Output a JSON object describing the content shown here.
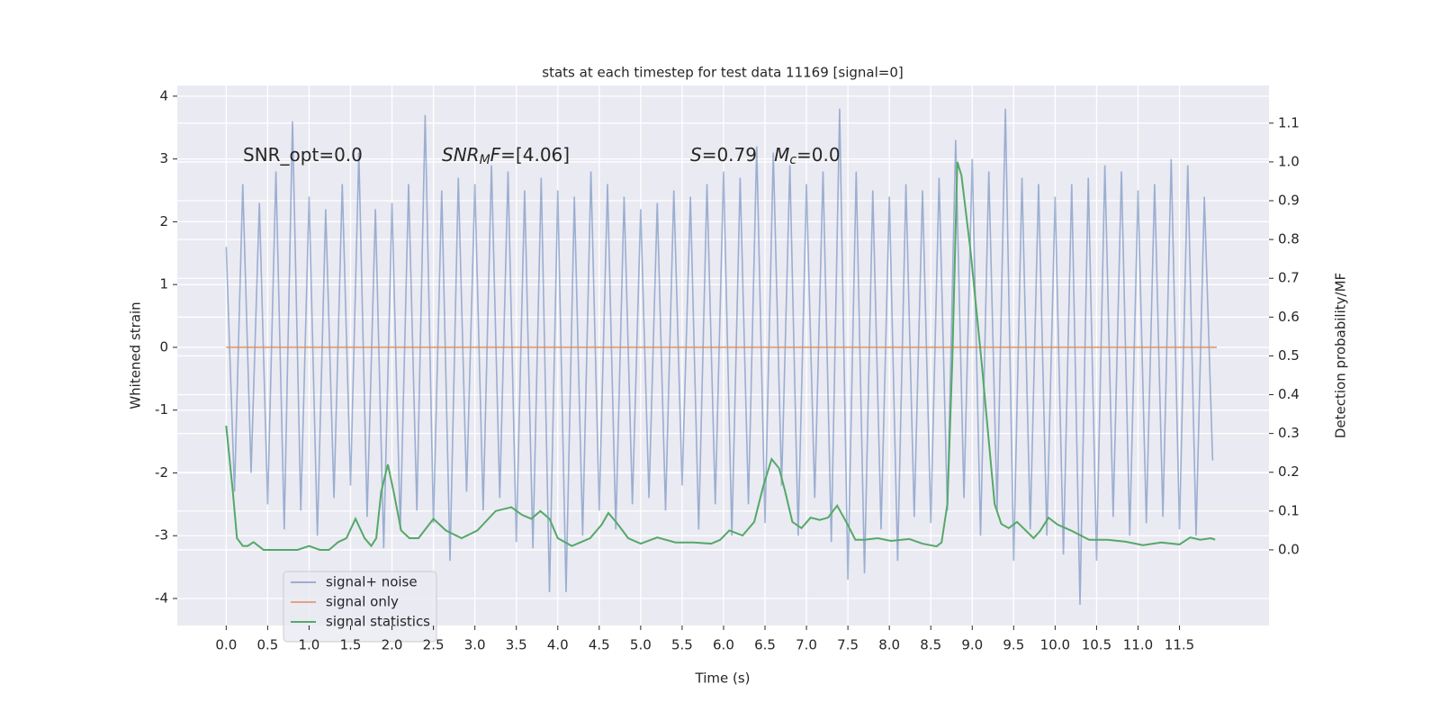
{
  "chart_data": {
    "type": "line",
    "title": "stats at each timestep for test data 11169 [signal=0]",
    "x_label": "Time (s)",
    "y_label": "Whitened strain",
    "y2_label": "Detection probability/MF",
    "xlim": [
      -0.59,
      12.58
    ],
    "ylim": [
      -4.43,
      4.17
    ],
    "y2lim": [
      -0.195,
      1.197
    ],
    "xticks": [
      {
        "value": 0,
        "label": "0.0"
      },
      0.5,
      {
        "value": 1,
        "label": "1.0"
      },
      1.5,
      {
        "value": 2,
        "label": "2.0"
      },
      2.5,
      {
        "value": 3,
        "label": "3.0"
      },
      3.5,
      {
        "value": 4,
        "label": "4.0"
      },
      4.5,
      {
        "value": 5,
        "label": "5.0"
      },
      5.5,
      {
        "value": 6,
        "label": "6.0"
      },
      6.5,
      {
        "value": 7,
        "label": "7.0"
      },
      7.5,
      {
        "value": 8,
        "label": "8.0"
      },
      8.5,
      {
        "value": 9,
        "label": "9.0"
      },
      9.5,
      {
        "value": 10,
        "label": "10.0"
      },
      10.5,
      {
        "value": 11,
        "label": "11.0"
      },
      11.5
    ],
    "yticks": [
      -4,
      -3,
      -2,
      -1,
      0,
      1,
      2,
      3,
      4
    ],
    "y2ticks": [
      {
        "value": 0,
        "label": "0.0"
      },
      0.1,
      0.2,
      0.3,
      0.4,
      0.5,
      0.6,
      0.7,
      0.8,
      0.9,
      {
        "value": 1,
        "label": "1.0"
      },
      1.1
    ],
    "grid": true,
    "legend": "lower left",
    "annotations": [
      [
        {
          "text": "SNR_opt=0.0"
        }
      ],
      [
        {
          "text": "SNR",
          "italic": true
        },
        {
          "text": "M",
          "italic": true,
          "sub": true
        },
        {
          "text": "F",
          "italic": true
        },
        {
          "text": "=[4.06]"
        }
      ],
      [
        {
          "text": "S",
          "italic": true
        },
        {
          "text": "=0.79   "
        },
        {
          "text": "M",
          "italic": true
        },
        {
          "text": "c",
          "italic": true,
          "sub": true
        },
        {
          "text": "=0.0"
        }
      ]
    ],
    "series": [
      {
        "name": "signal+ noise",
        "color": "#4c72b0",
        "opacity": 0.5,
        "x": [
          0.0,
          0.1,
          0.2,
          0.3,
          0.4,
          0.5,
          0.6,
          0.7,
          0.8,
          0.9,
          1.0,
          1.1,
          1.2,
          1.3,
          1.4,
          1.5,
          1.6,
          1.7,
          1.8,
          1.9,
          2.0,
          2.1,
          2.2,
          2.3,
          2.4,
          2.5,
          2.6,
          2.7,
          2.8,
          2.9,
          3.0,
          3.1,
          3.2,
          3.3,
          3.4,
          3.5,
          3.6,
          3.7,
          3.8,
          3.9,
          4.0,
          4.1,
          4.2,
          4.3,
          4.4,
          4.5,
          4.6,
          4.7,
          4.8,
          4.9,
          5.0,
          5.1,
          5.2,
          5.3,
          5.4,
          5.5,
          5.6,
          5.7,
          5.8,
          5.9,
          6.0,
          6.1,
          6.2,
          6.3,
          6.4,
          6.5,
          6.6,
          6.7,
          6.8,
          6.9,
          7.0,
          7.1,
          7.2,
          7.3,
          7.4,
          7.5,
          7.6,
          7.7,
          7.8,
          7.9,
          8.0,
          8.1,
          8.2,
          8.3,
          8.4,
          8.5,
          8.6,
          8.7,
          8.8,
          8.9,
          9.0,
          9.1,
          9.2,
          9.3,
          9.4,
          9.5,
          9.6,
          9.7,
          9.8,
          9.9,
          10.0,
          10.1,
          10.2,
          10.3,
          10.4,
          10.5,
          10.6,
          10.7,
          10.8,
          10.9,
          11.0,
          11.1,
          11.2,
          11.3,
          11.4,
          11.5,
          11.6,
          11.7,
          11.8,
          11.9
        ],
        "values": [
          1.6,
          -2.3,
          2.6,
          -2.0,
          2.3,
          -2.5,
          2.8,
          -2.9,
          3.6,
          -2.6,
          2.4,
          -3.0,
          2.2,
          -2.4,
          2.6,
          -2.2,
          3.1,
          -2.7,
          2.2,
          -3.2,
          2.3,
          -2.9,
          2.6,
          -2.6,
          3.7,
          -2.8,
          2.5,
          -3.4,
          2.7,
          -2.3,
          2.6,
          -2.6,
          2.9,
          -2.4,
          2.8,
          -3.1,
          2.5,
          -3.2,
          2.7,
          -3.9,
          2.5,
          -3.9,
          2.4,
          -3.0,
          2.8,
          -2.6,
          2.6,
          -2.9,
          2.4,
          -2.5,
          2.2,
          -2.4,
          2.3,
          -2.6,
          2.5,
          -2.2,
          2.4,
          -2.9,
          2.6,
          -2.5,
          2.8,
          -3.0,
          2.7,
          -2.5,
          3.2,
          -2.8,
          3.1,
          -2.2,
          2.9,
          -3.0,
          2.6,
          -2.4,
          2.8,
          -3.1,
          3.8,
          -3.7,
          2.8,
          -3.6,
          2.5,
          -2.9,
          2.4,
          -3.4,
          2.6,
          -2.7,
          2.5,
          -2.8,
          2.7,
          -2.6,
          3.3,
          -2.4,
          3.0,
          -3.0,
          2.8,
          -2.6,
          3.8,
          -3.4,
          2.7,
          -2.9,
          2.6,
          -3.0,
          2.4,
          -3.3,
          2.6,
          -4.1,
          2.7,
          -3.4,
          2.9,
          -2.7,
          2.8,
          -3.0,
          2.5,
          -2.8,
          2.6,
          -2.7,
          3.0,
          -2.9,
          2.9,
          -3.0,
          2.4,
          -1.8
        ]
      },
      {
        "name": "signal only",
        "color": "#dd8452",
        "opacity": 0.7,
        "x": [
          0,
          11.95
        ],
        "values": [
          0,
          0
        ]
      },
      {
        "name": "signal statistics",
        "color": "#55a868",
        "opacity": 1,
        "axis": "y2",
        "x": [
          0,
          0.08,
          0.13,
          0.2,
          0.26,
          0.33,
          0.45,
          0.64,
          0.86,
          1.0,
          1.13,
          1.24,
          1.35,
          1.45,
          1.56,
          1.67,
          1.75,
          1.81,
          1.87,
          1.95,
          2.02,
          2.11,
          2.21,
          2.32,
          2.5,
          2.65,
          2.84,
          3.03,
          3.25,
          3.44,
          3.57,
          3.68,
          3.79,
          3.9,
          4.0,
          4.17,
          4.39,
          4.53,
          4.61,
          4.71,
          4.85,
          5.0,
          5.2,
          5.42,
          5.64,
          5.85,
          5.96,
          6.07,
          6.23,
          6.37,
          6.48,
          6.58,
          6.67,
          6.74,
          6.83,
          6.94,
          7.05,
          7.16,
          7.26,
          7.37,
          7.48,
          7.59,
          7.7,
          7.86,
          8.02,
          8.24,
          8.4,
          8.57,
          8.63,
          8.7,
          8.76,
          8.82,
          8.87,
          8.98,
          9.11,
          9.2,
          9.27,
          9.35,
          9.44,
          9.54,
          9.65,
          9.74,
          9.82,
          9.92,
          10.03,
          10.2,
          10.41,
          10.63,
          10.85,
          11.06,
          11.28,
          11.5,
          11.63,
          11.75,
          11.88,
          11.93
        ],
        "values": [
          0.32,
          0.15,
          0.03,
          0.01,
          0.01,
          0.02,
          0.0,
          0.0,
          0.0,
          0.01,
          0.0,
          0.0,
          0.02,
          0.03,
          0.08,
          0.03,
          0.01,
          0.03,
          0.15,
          0.22,
          0.15,
          0.05,
          0.03,
          0.03,
          0.08,
          0.05,
          0.03,
          0.05,
          0.1,
          0.11,
          0.09,
          0.08,
          0.1,
          0.08,
          0.03,
          0.01,
          0.03,
          0.065,
          0.095,
          0.07,
          0.03,
          0.016,
          0.032,
          0.019,
          0.019,
          0.016,
          0.026,
          0.05,
          0.037,
          0.072,
          0.165,
          0.234,
          0.21,
          0.153,
          0.072,
          0.056,
          0.083,
          0.077,
          0.083,
          0.114,
          0.072,
          0.026,
          0.026,
          0.03,
          0.023,
          0.028,
          0.016,
          0.009,
          0.019,
          0.118,
          0.49,
          1.0,
          0.965,
          0.77,
          0.49,
          0.28,
          0.118,
          0.067,
          0.056,
          0.072,
          0.049,
          0.03,
          0.049,
          0.083,
          0.065,
          0.049,
          0.026,
          0.026,
          0.021,
          0.012,
          0.019,
          0.014,
          0.032,
          0.026,
          0.03,
          0.026
        ]
      }
    ]
  }
}
